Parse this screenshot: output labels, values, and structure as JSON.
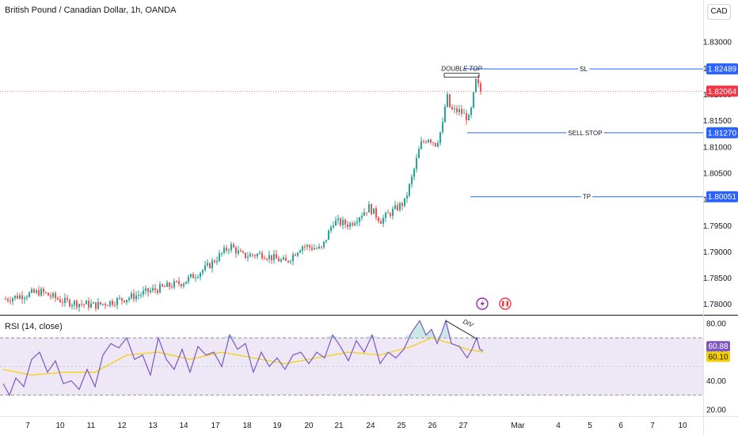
{
  "header": {
    "title": "British Pound / Canadian Dollar, 1h, OANDA",
    "currency": "CAD"
  },
  "rsi_panel": {
    "title": "RSI (14, close)"
  },
  "colors": {
    "up": "#26a69a",
    "down": "#ef5350",
    "level_line": "#2962ff",
    "rsi_line": "#7e57c2",
    "rsi_ma": "#f5d000",
    "rsi_band": "#ede7f6",
    "current_price": "#f23645"
  },
  "chart_data": [
    {
      "type": "candlestick",
      "title": "British Pound / Canadian Dollar, 1h, OANDA",
      "y_ticks": [
        1.78,
        1.785,
        1.79,
        1.795,
        1.8,
        1.805,
        1.81,
        1.815,
        1.82,
        1.825,
        1.83
      ],
      "ylim": [
        1.778,
        1.8335
      ],
      "x_ticks": [
        "7",
        "10",
        "11",
        "12",
        "13",
        "14",
        "17",
        "18",
        "19",
        "20",
        "21",
        "24",
        "25",
        "26",
        "27",
        "Mar",
        "4",
        "5",
        "6",
        "7",
        "10"
      ],
      "grid": false,
      "price_path": [
        [
          6,
          1.781
        ],
        [
          30,
          1.7818
        ],
        [
          50,
          1.7824
        ],
        [
          80,
          1.7805
        ],
        [
          120,
          1.7798
        ],
        [
          160,
          1.7812
        ],
        [
          190,
          1.7826
        ],
        [
          230,
          1.7842
        ],
        [
          260,
          1.787
        ],
        [
          290,
          1.7912
        ],
        [
          305,
          1.7892
        ],
        [
          330,
          1.7896
        ],
        [
          360,
          1.788
        ],
        [
          380,
          1.7912
        ],
        [
          405,
          1.7905
        ],
        [
          420,
          1.7958
        ],
        [
          440,
          1.7952
        ],
        [
          465,
          1.7985
        ],
        [
          480,
          1.796
        ],
        [
          495,
          1.7978
        ],
        [
          510,
          1.7995
        ],
        [
          520,
          1.8045
        ],
        [
          530,
          1.8105
        ],
        [
          540,
          1.8118
        ],
        [
          550,
          1.8105
        ],
        [
          558,
          1.8142
        ],
        [
          563,
          1.82
        ],
        [
          568,
          1.817
        ],
        [
          580,
          1.8168
        ],
        [
          592,
          1.8152
        ],
        [
          600,
          1.8225
        ],
        [
          606,
          1.8206
        ]
      ],
      "levels": [
        {
          "label": "SL",
          "value": 1.82489
        },
        {
          "label": "SELL STOP",
          "value": 1.8127
        },
        {
          "label": "TP",
          "value": 1.80051
        }
      ],
      "price_tags": [
        {
          "text": "1.82489",
          "value": 1.82489,
          "kind": "level"
        },
        {
          "text": "1.82064",
          "value": 1.82064,
          "kind": "current"
        },
        {
          "text": "1.81270",
          "value": 1.8127,
          "kind": "level"
        },
        {
          "text": "1.80051",
          "value": 1.80051,
          "kind": "level"
        }
      ],
      "current_price": 1.82064,
      "annotations": [
        {
          "text": "DOUBLE TOP",
          "x": 583,
          "value": 1.8245
        }
      ]
    },
    {
      "type": "line",
      "title": "RSI (14, close)",
      "y_ticks": [
        20,
        40,
        60,
        80
      ],
      "ylim": [
        16,
        85
      ],
      "band": [
        30,
        70
      ],
      "mid_line": 50,
      "rsi_path": [
        [
          4,
          38
        ],
        [
          12,
          30
        ],
        [
          20,
          42
        ],
        [
          30,
          36
        ],
        [
          40,
          55
        ],
        [
          50,
          60
        ],
        [
          60,
          46
        ],
        [
          70,
          54
        ],
        [
          80,
          38
        ],
        [
          90,
          40
        ],
        [
          100,
          34
        ],
        [
          110,
          48
        ],
        [
          120,
          36
        ],
        [
          130,
          58
        ],
        [
          140,
          66
        ],
        [
          150,
          63
        ],
        [
          160,
          70
        ],
        [
          170,
          55
        ],
        [
          180,
          58
        ],
        [
          190,
          44
        ],
        [
          200,
          70
        ],
        [
          210,
          55
        ],
        [
          220,
          48
        ],
        [
          230,
          62
        ],
        [
          240,
          46
        ],
        [
          250,
          64
        ],
        [
          260,
          58
        ],
        [
          270,
          60
        ],
        [
          280,
          50
        ],
        [
          290,
          72
        ],
        [
          300,
          62
        ],
        [
          310,
          66
        ],
        [
          320,
          46
        ],
        [
          330,
          60
        ],
        [
          340,
          50
        ],
        [
          350,
          56
        ],
        [
          360,
          48
        ],
        [
          370,
          58
        ],
        [
          380,
          60
        ],
        [
          390,
          52
        ],
        [
          400,
          60
        ],
        [
          410,
          56
        ],
        [
          420,
          72
        ],
        [
          430,
          64
        ],
        [
          440,
          54
        ],
        [
          450,
          68
        ],
        [
          460,
          60
        ],
        [
          470,
          72
        ],
        [
          480,
          52
        ],
        [
          490,
          60
        ],
        [
          500,
          56
        ],
        [
          510,
          62
        ],
        [
          520,
          74
        ],
        [
          530,
          82
        ],
        [
          538,
          72
        ],
        [
          545,
          76
        ],
        [
          552,
          66
        ],
        [
          558,
          74
        ],
        [
          563,
          82
        ],
        [
          570,
          66
        ],
        [
          580,
          64
        ],
        [
          590,
          56
        ],
        [
          596,
          62
        ],
        [
          602,
          70
        ],
        [
          606,
          62
        ],
        [
          610,
          60.88
        ]
      ],
      "ma_path": [
        [
          4,
          48
        ],
        [
          40,
          44
        ],
        [
          80,
          46
        ],
        [
          120,
          46
        ],
        [
          160,
          58
        ],
        [
          200,
          60
        ],
        [
          240,
          55
        ],
        [
          280,
          60
        ],
        [
          320,
          56
        ],
        [
          360,
          52
        ],
        [
          400,
          56
        ],
        [
          440,
          60
        ],
        [
          480,
          58
        ],
        [
          520,
          64
        ],
        [
          545,
          70
        ],
        [
          570,
          66
        ],
        [
          590,
          62
        ],
        [
          610,
          60.1
        ]
      ],
      "value_tags": [
        {
          "text": "60.88",
          "value": 60.88,
          "kind": "rsi"
        },
        {
          "text": "60.10",
          "value": 60.1,
          "kind": "ma"
        }
      ],
      "annotations": [
        {
          "text": "DIV",
          "x": 590,
          "value": 80
        }
      ]
    }
  ]
}
